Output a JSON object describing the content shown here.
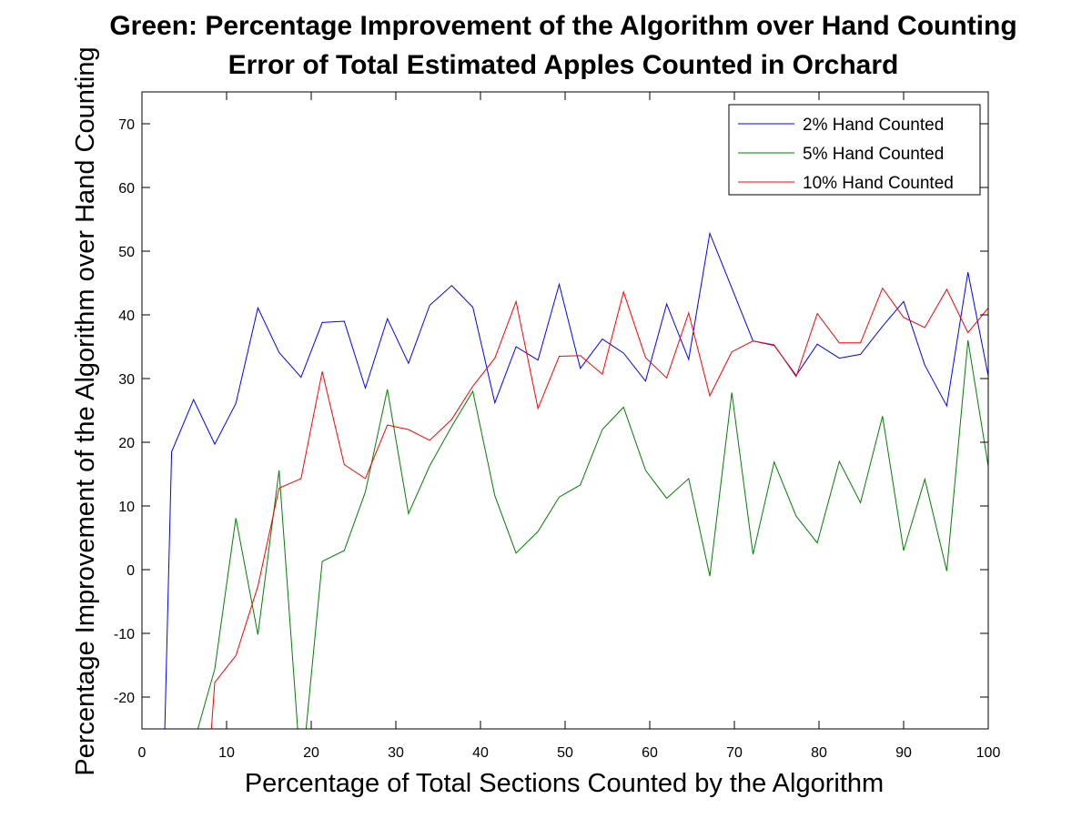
{
  "chart_data": {
    "type": "line",
    "title": [
      "Green: Percentage Improvement of the Algorithm over Hand Counting",
      "Error of Total Estimated Apples Counted in Orchard"
    ],
    "xlabel": "Percentage of Total Sections Counted by the Algorithm",
    "ylabel": "Percentage Improvement of the Algorithm over Hand Counting",
    "xlim": [
      0,
      100
    ],
    "ylim": [
      -25,
      75
    ],
    "xticks": [
      0,
      10,
      20,
      30,
      40,
      50,
      60,
      70,
      80,
      90,
      100
    ],
    "yticks": [
      -20,
      -10,
      0,
      10,
      20,
      30,
      40,
      50,
      60,
      70
    ],
    "grid": false,
    "legend_position": "top-right",
    "series": [
      {
        "name": "2% Hand Counted",
        "color": "#0000ff",
        "points": [
          [
            2.7,
            -25
          ],
          [
            3.5,
            18.5
          ],
          [
            6.1,
            26.7
          ],
          [
            8.6,
            19.7
          ],
          [
            11.1,
            26.1
          ],
          [
            13.7,
            41.1
          ],
          [
            16.2,
            34.1
          ],
          [
            18.8,
            30.2
          ],
          [
            21.3,
            38.8
          ],
          [
            23.9,
            39
          ],
          [
            26.4,
            28.5
          ],
          [
            29,
            39.4
          ],
          [
            31.5,
            32.4
          ],
          [
            34,
            41.5
          ],
          [
            36.6,
            44.6
          ],
          [
            39.1,
            41.2
          ],
          [
            41.7,
            26.2
          ],
          [
            44.2,
            35
          ],
          [
            46.8,
            32.9
          ],
          [
            49.3,
            44.8
          ],
          [
            51.8,
            31.6
          ],
          [
            54.4,
            36.2
          ],
          [
            56.9,
            34
          ],
          [
            59.5,
            29.6
          ],
          [
            62,
            41.7
          ],
          [
            64.6,
            33
          ],
          [
            67.1,
            52.8
          ],
          [
            69.7,
            44.2
          ],
          [
            72.2,
            35.9
          ],
          [
            74.7,
            35.2
          ],
          [
            77.3,
            30.5
          ],
          [
            79.8,
            35.4
          ],
          [
            82.4,
            33.2
          ],
          [
            84.9,
            33.8
          ],
          [
            87.5,
            38.2
          ],
          [
            90,
            42.1
          ],
          [
            92.5,
            32.1
          ],
          [
            95.1,
            25.7
          ],
          [
            97.6,
            46.7
          ],
          [
            100,
            30.4
          ]
        ]
      },
      {
        "name": "5% Hand Counted",
        "color": "#008000",
        "points": [
          [
            6.6,
            -25
          ],
          [
            8.6,
            -15.6
          ],
          [
            11.1,
            8.1
          ],
          [
            13.7,
            -10.2
          ],
          [
            16.2,
            15.6
          ],
          [
            18.4,
            -25
          ],
          [
            19.4,
            -25
          ],
          [
            21.3,
            1.3
          ],
          [
            23.9,
            3
          ],
          [
            26.4,
            12.2
          ],
          [
            29,
            28.3
          ],
          [
            31.5,
            8.8
          ],
          [
            34,
            16.3
          ],
          [
            36.6,
            22.5
          ],
          [
            39.1,
            28
          ],
          [
            41.7,
            11.6
          ],
          [
            44.2,
            2.6
          ],
          [
            46.8,
            6
          ],
          [
            49.3,
            11.4
          ],
          [
            51.8,
            13.3
          ],
          [
            54.4,
            22
          ],
          [
            56.9,
            25.5
          ],
          [
            59.5,
            15.6
          ],
          [
            62,
            11.2
          ],
          [
            64.6,
            14.3
          ],
          [
            67.1,
            -1
          ],
          [
            69.7,
            27.8
          ],
          [
            72.2,
            2.4
          ],
          [
            74.7,
            16.9
          ],
          [
            77.3,
            8.4
          ],
          [
            79.8,
            4.2
          ],
          [
            82.4,
            17
          ],
          [
            84.9,
            10.5
          ],
          [
            87.5,
            24.1
          ],
          [
            90,
            3
          ],
          [
            92.5,
            14.2
          ],
          [
            95.1,
            -0.2
          ],
          [
            97.6,
            36
          ],
          [
            100,
            16.2
          ]
        ]
      },
      {
        "name": "10% Hand Counted",
        "color": "#ff0000",
        "points": [
          [
            8.2,
            -25
          ],
          [
            8.6,
            -17.7
          ],
          [
            11.1,
            -13.5
          ],
          [
            13.7,
            -2.6
          ],
          [
            16.2,
            12.8
          ],
          [
            18.8,
            14.3
          ],
          [
            21.3,
            31.1
          ],
          [
            23.9,
            16.5
          ],
          [
            26.4,
            14.3
          ],
          [
            29,
            22.7
          ],
          [
            31.5,
            22
          ],
          [
            34,
            20.3
          ],
          [
            36.6,
            23.6
          ],
          [
            39.1,
            28.8
          ],
          [
            41.7,
            33.2
          ],
          [
            44.2,
            42.1
          ],
          [
            46.8,
            25.3
          ],
          [
            49.3,
            33.5
          ],
          [
            51.8,
            33.6
          ],
          [
            54.4,
            30.7
          ],
          [
            56.9,
            43.6
          ],
          [
            59.5,
            33.3
          ],
          [
            62,
            30.1
          ],
          [
            64.6,
            40.3
          ],
          [
            67.1,
            27.3
          ],
          [
            69.7,
            34.2
          ],
          [
            72.2,
            35.9
          ],
          [
            74.7,
            35.3
          ],
          [
            77.3,
            30.3
          ],
          [
            79.8,
            40.2
          ],
          [
            82.4,
            35.6
          ],
          [
            84.9,
            35.6
          ],
          [
            87.5,
            44.2
          ],
          [
            90,
            39.6
          ],
          [
            92.5,
            38
          ],
          [
            95.1,
            44
          ],
          [
            97.6,
            37.2
          ],
          [
            100,
            41.1
          ]
        ]
      }
    ]
  }
}
